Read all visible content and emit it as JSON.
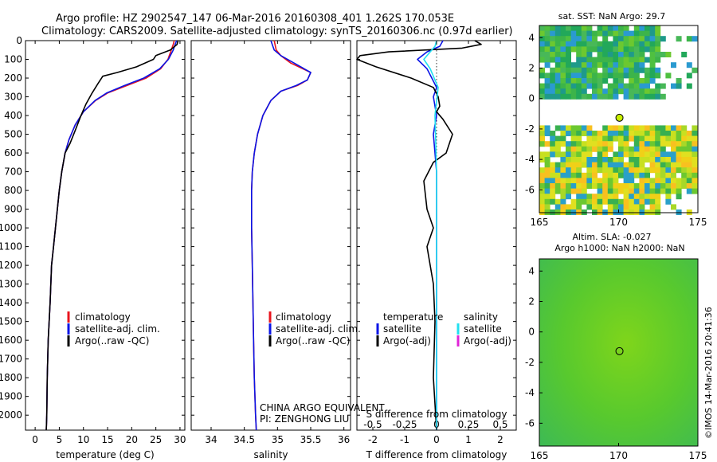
{
  "header": {
    "line1": "Argo profile: HZ 2902547_147 06-Mar-2016 20160308_401 1.262S 170.053E",
    "line2": "Climatology: CARS2009. Satellite-adjusted climatology: synTS_20160306.nc (0.97d earlier)"
  },
  "sst_title": "sat. SST: NaN Argo: 29.7",
  "sla_title1": "Altim. SLA: -0.027",
  "sla_title2": "Argo h1000: NaN h2000: NaN",
  "credit": "CHINA ARGO EQUIVALENT",
  "pi": "PI: ZENGHONG LIU",
  "stamp": "©IMOS 14-Mar-2016 20:41:36",
  "colors": {
    "climatology": "#e8141e",
    "satellite": "#0a14e6",
    "argo": "#000000",
    "sat_s": "#22e0f0",
    "argo_s": "#e024d8"
  },
  "chart_data": [
    {
      "type": "line",
      "xlabel": "temperature (deg C)",
      "xlim": [
        -2,
        31
      ],
      "ylim": [
        2080,
        0
      ],
      "x_ticks": [
        0,
        5,
        10,
        15,
        20,
        25,
        30
      ],
      "y_ticks": [
        0,
        100,
        200,
        300,
        400,
        500,
        600,
        700,
        800,
        900,
        1000,
        1100,
        1200,
        1300,
        1400,
        1500,
        1600,
        1700,
        1800,
        1900,
        2000
      ],
      "legend": [
        "climatology",
        "satellite-adj. clim.",
        "Argo(..raw -QC)"
      ],
      "series": [
        {
          "name": "climatology",
          "color": "#e8141e",
          "x": [
            28.8,
            28.6,
            28.2,
            27.5,
            26.0,
            23.0,
            19.0,
            15.0,
            12.5,
            10.0,
            8.3,
            7.0,
            6.2,
            5.5,
            5.0,
            4.6,
            4.2,
            3.8,
            3.4,
            3.1,
            2.9,
            2.7,
            2.5,
            2.4,
            2.3
          ],
          "y": [
            0,
            20,
            50,
            100,
            150,
            200,
            240,
            280,
            320,
            380,
            450,
            530,
            600,
            700,
            800,
            900,
            1000,
            1100,
            1200,
            1400,
            1500,
            1600,
            1800,
            2000,
            2080
          ]
        },
        {
          "name": "satellite-adj. clim.",
          "color": "#0a14e6",
          "x": [
            29.3,
            29.0,
            28.6,
            27.6,
            25.8,
            22.5,
            18.5,
            14.8,
            12.4,
            10.0,
            8.3,
            7.0,
            6.2,
            5.5,
            5.0,
            4.6,
            4.2,
            3.8,
            3.4,
            3.1,
            2.9,
            2.7,
            2.5,
            2.4,
            2.3
          ],
          "y": [
            0,
            20,
            50,
            100,
            150,
            200,
            240,
            280,
            320,
            380,
            450,
            530,
            600,
            700,
            800,
            900,
            1000,
            1100,
            1200,
            1400,
            1500,
            1600,
            1800,
            2000,
            2080
          ]
        },
        {
          "name": "Argo(..raw -QC)",
          "color": "#000000",
          "x": [
            29.6,
            29.4,
            28.0,
            25.0,
            24.5,
            21.0,
            17.0,
            14.0,
            13.0,
            11.8,
            10.5,
            9.5,
            8.3,
            7.2,
            6.2,
            5.5,
            5.0,
            4.6,
            4.2,
            3.8,
            3.4,
            3.1,
            2.9,
            2.7,
            2.5,
            2.4,
            2.3
          ],
          "y": [
            0,
            20,
            50,
            80,
            100,
            140,
            170,
            190,
            230,
            280,
            340,
            400,
            480,
            550,
            600,
            700,
            800,
            900,
            1000,
            1100,
            1200,
            1400,
            1500,
            1600,
            1800,
            2000,
            2080
          ]
        }
      ]
    },
    {
      "type": "line",
      "xlabel": "salinity",
      "xlim": [
        33.7,
        36.1
      ],
      "ylim": [
        2080,
        0
      ],
      "x_ticks": [
        34,
        34.5,
        35,
        35.5,
        36
      ],
      "legend": [
        "climatology",
        "satellite-adj. clim.",
        "Argo(..raw -QC)"
      ],
      "series": [
        {
          "name": "climatology",
          "color": "#e8141e",
          "x": [
            34.95,
            34.98,
            35.05,
            35.2,
            35.5,
            35.45,
            35.3,
            35.05,
            34.9,
            34.78,
            34.7,
            34.65,
            34.62,
            34.61,
            34.61,
            34.62,
            34.63,
            34.64,
            34.65,
            34.66,
            34.67,
            34.68
          ],
          "y": [
            0,
            50,
            80,
            120,
            170,
            210,
            240,
            270,
            320,
            400,
            500,
            600,
            700,
            800,
            1000,
            1200,
            1400,
            1600,
            1800,
            1900,
            2000,
            2080
          ]
        },
        {
          "name": "satellite-adj. clim.",
          "color": "#0a14e6",
          "x": [
            34.9,
            34.95,
            35.05,
            35.25,
            35.5,
            35.45,
            35.28,
            35.05,
            34.9,
            34.78,
            34.7,
            34.65,
            34.62,
            34.61,
            34.61,
            34.62,
            34.63,
            34.64,
            34.65,
            34.66,
            34.67,
            34.68
          ],
          "y": [
            0,
            50,
            80,
            120,
            170,
            210,
            240,
            270,
            320,
            400,
            500,
            600,
            700,
            800,
            1000,
            1200,
            1400,
            1600,
            1800,
            1900,
            2000,
            2080
          ]
        }
      ]
    },
    {
      "type": "line",
      "xlabel": "T difference from climatology",
      "xlabel_top": "S difference from climatology",
      "xlim": [
        -2.5,
        2.5
      ],
      "ylim": [
        2080,
        0
      ],
      "x_ticks": [
        -2,
        -1,
        0,
        1,
        2
      ],
      "x_ticks_top": [
        -0.5,
        -0.25,
        0,
        0.25,
        0.5
      ],
      "legend": [
        "temperature",
        "satellite",
        "Argo(-adj)",
        "salinity",
        "satellite",
        "Argo(-adj)"
      ],
      "series": [
        {
          "name": "satellite",
          "color": "#0a14e6",
          "x": [
            0.2,
            0.1,
            -0.3,
            -0.6,
            -0.3,
            0.0,
            -0.1,
            0.0,
            -0.1,
            0.0,
            0.0,
            0.0,
            0.0,
            0.0
          ],
          "y": [
            0,
            30,
            60,
            100,
            150,
            250,
            300,
            400,
            500,
            700,
            1000,
            1500,
            2000,
            2080
          ]
        },
        {
          "name": "Argo(-adj)",
          "color": "#000000",
          "x": [
            1.2,
            1.4,
            0.8,
            -1.5,
            -2.4,
            -2.5,
            -1.9,
            -0.8,
            -0.1,
            0.05,
            0.1,
            0.0,
            0.2,
            0.5,
            0.3,
            -0.1,
            -0.4,
            -0.3,
            -0.1,
            -0.3,
            -0.1,
            -0.05,
            -0.1,
            0.0
          ],
          "y": [
            0,
            20,
            40,
            60,
            80,
            100,
            140,
            200,
            250,
            300,
            350,
            380,
            420,
            500,
            600,
            650,
            750,
            900,
            1000,
            1100,
            1300,
            1500,
            1800,
            2080
          ]
        },
        {
          "name": "satellite",
          "color": "#22e0f0",
          "x": [
            0.0,
            -0.05,
            -0.2,
            -0.4,
            -0.2,
            0.05,
            -0.05,
            0.0,
            0.0,
            0.0,
            0.0
          ],
          "y": [
            0,
            30,
            60,
            100,
            150,
            250,
            400,
            700,
            1000,
            1500,
            2080
          ]
        }
      ]
    },
    {
      "type": "heatmap",
      "title": "sat. SST: NaN Argo: 29.7",
      "xlim": [
        165,
        175
      ],
      "ylim": [
        -7.5,
        4.8
      ],
      "x_ticks": [
        165,
        170,
        175
      ],
      "y_ticks": [
        -6,
        -4,
        -2,
        0,
        2,
        4
      ],
      "profile_point": [
        170.053,
        -1.262
      ]
    },
    {
      "type": "heatmap",
      "title": "Altim. SLA: -0.027",
      "xlim": [
        165,
        175
      ],
      "ylim": [
        -7.5,
        4.8
      ],
      "x_ticks": [
        165,
        170,
        175
      ],
      "y_ticks": [
        -6,
        -4,
        -2,
        0,
        2,
        4
      ],
      "profile_point": [
        170.053,
        -1.262
      ]
    }
  ]
}
